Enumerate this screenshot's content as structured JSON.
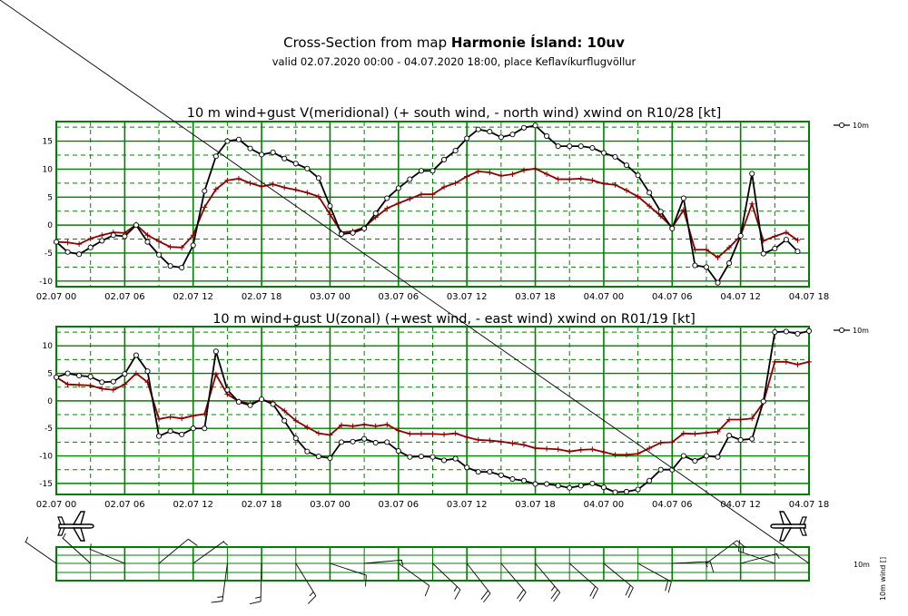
{
  "title_prefix": "Cross-Section from map ",
  "title_bold": "Harmonie Ísland: 10uv",
  "subtitle": "valid 02.07.2020 00:00 - 04.07.2020 18:00, place Keflavíkurflugvöllur",
  "colors": {
    "grid": "#008000",
    "wind": "#000000",
    "mean": "#8b0000",
    "barb": "#000000"
  },
  "icons": [
    "airplane-icon",
    "airplane-icon"
  ],
  "barb_panel": {
    "legend_label": "10m",
    "side_label": "10m wind []"
  },
  "chart_data": [
    {
      "type": "line",
      "title": "10 m wind+gust V(meridional) (+ south wind, - north wind) xwind on R10/28 [kt]",
      "x_tick_labels": [
        "02.07 00",
        "02.07 06",
        "02.07 12",
        "02.07 18",
        "03.07 00",
        "03.07 06",
        "03.07 12",
        "03.07 18",
        "04.07 00",
        "04.07 06",
        "04.07 12",
        "04.07 18"
      ],
      "x_step_hours": 1,
      "ylim": [
        -11,
        18.5
      ],
      "y_ticks": [
        15,
        10,
        5,
        0,
        -5,
        -10
      ],
      "legend": "10m",
      "series": [
        {
          "name": "10m",
          "values": [
            -3,
            -4.8,
            -5.2,
            -4,
            -2.8,
            -1.8,
            -2,
            0,
            -3,
            -5.3,
            -7.3,
            -7.6,
            -3.6,
            6.1,
            12.3,
            15,
            15.3,
            13.7,
            12.6,
            13,
            11.9,
            11,
            10.1,
            8.4,
            3.4,
            -1.6,
            -1.4,
            -0.6,
            2.1,
            4.8,
            6.6,
            8.2,
            9.7,
            9.7,
            11.7,
            13.3,
            15.5,
            17.1,
            16.7,
            15.7,
            16.2,
            17.4,
            17.8,
            15.9,
            14.1,
            14.1,
            14.1,
            13.8,
            12.9,
            12.2,
            10.7,
            8.9,
            5.8,
            2.4,
            -0.6,
            4.8,
            -7.2,
            -7.5,
            -10.3,
            -6.8,
            -1.9,
            9.2,
            -5.1,
            -4.2,
            -2.6,
            -4.7
          ]
        },
        {
          "values": [
            -3,
            -3.1,
            -3.4,
            -2.4,
            -1.8,
            -1.3,
            -1.4,
            0.1,
            -1.8,
            -2.9,
            -3.9,
            -4,
            -1.8,
            3.2,
            6.4,
            8,
            8.3,
            7.5,
            6.9,
            7.3,
            6.7,
            6.3,
            5.8,
            5.1,
            1.9,
            -1.3,
            -1.1,
            -0.4,
            1.4,
            3,
            3.9,
            4.7,
            5.5,
            5.5,
            6.8,
            7.5,
            8.7,
            9.6,
            9.4,
            8.8,
            9.1,
            9.8,
            10.1,
            9.1,
            8.2,
            8.2,
            8.3,
            8,
            7.4,
            7.2,
            6.2,
            5.1,
            3.4,
            1.6,
            -0.4,
            2.7,
            -4.4,
            -4.4,
            -5.8,
            -4,
            -1.9,
            3.8,
            -2.8,
            -2,
            -1.3,
            -2.7
          ]
        }
      ]
    },
    {
      "type": "line",
      "title": "10 m wind+gust U(zonal) (+west wind, - east wind) xwind on R01/19 [kt]",
      "x_tick_labels": [
        "02.07 00",
        "02.07 06",
        "02.07 12",
        "02.07 18",
        "03.07 00",
        "03.07 06",
        "03.07 12",
        "03.07 18",
        "04.07 00",
        "04.07 06",
        "04.07 12",
        "04.07 18"
      ],
      "x_step_hours": 1,
      "ylim": [
        -17,
        13.5
      ],
      "y_ticks": [
        10,
        5,
        0,
        -5,
        -10,
        -15
      ],
      "legend": "10m",
      "series": [
        {
          "name": "10m",
          "values": [
            4.3,
            5,
            4.6,
            4.4,
            3.4,
            3.5,
            4.9,
            8.3,
            5.4,
            -6.4,
            -5.5,
            -6.1,
            -5,
            -5,
            9,
            2,
            -0.2,
            -0.8,
            0.3,
            -0.6,
            -3.6,
            -6.8,
            -9.2,
            -10.1,
            -10.4,
            -7.5,
            -7.4,
            -6.9,
            -7.6,
            -7.5,
            -9.1,
            -10.2,
            -10.1,
            -10.2,
            -10.8,
            -10.5,
            -12.1,
            -12.9,
            -12.9,
            -13.5,
            -14.2,
            -14.5,
            -15.1,
            -15.1,
            -15.4,
            -15.8,
            -15.4,
            -15,
            -15.7,
            -16.6,
            -16.5,
            -16.1,
            -14.5,
            -12.5,
            -12.5,
            -10,
            -10.9,
            -10,
            -10.2,
            -6.3,
            -7.1,
            -6.9,
            -0.1,
            12.5,
            12.6,
            12.2,
            12.7
          ]
        },
        {
          "values": [
            4.3,
            3,
            2.9,
            2.8,
            2.2,
            2,
            3,
            5,
            3.4,
            -3.3,
            -2.9,
            -3.2,
            -2.7,
            -2.4,
            4.8,
            1.2,
            -0.1,
            -0.5,
            0.2,
            -0.3,
            -1.8,
            -3.6,
            -4.8,
            -5.9,
            -6.2,
            -4.4,
            -4.6,
            -4.3,
            -4.6,
            -4.3,
            -5.4,
            -6,
            -6,
            -6,
            -6.1,
            -5.9,
            -6.6,
            -7.1,
            -7.2,
            -7.4,
            -7.7,
            -8,
            -8.6,
            -8.7,
            -8.8,
            -9.2,
            -8.9,
            -8.8,
            -9.3,
            -9.8,
            -9.8,
            -9.6,
            -8.6,
            -7.6,
            -7.5,
            -5.9,
            -6,
            -5.8,
            -5.6,
            -3.4,
            -3.4,
            -3.2,
            -0.3,
            7.1,
            7.1,
            6.6,
            7.1
          ]
        }
      ]
    }
  ]
}
